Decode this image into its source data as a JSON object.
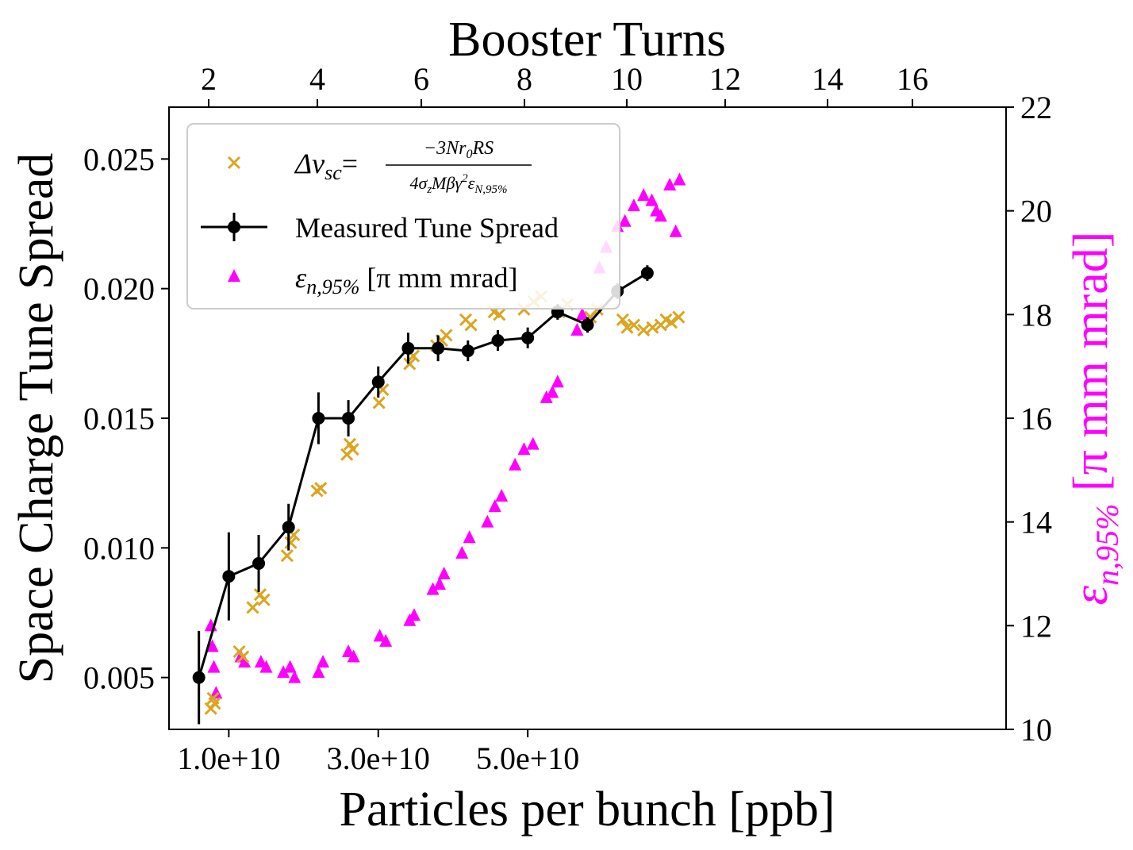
{
  "chart_data": {
    "type": "scatter",
    "title": "Booster Turns",
    "xlabel": "Particles per bunch [ppb]",
    "ylabel": "Space Charge Tune Spread",
    "y2label": "ε",
    "y2label_sub": "n,95%",
    "y2label_unit": "[π mm mrad]",
    "xlim": [
      2000000000.0,
      114000000000.0
    ],
    "ylim": [
      0.003,
      0.027
    ],
    "y2lim": [
      10,
      22
    ],
    "x_ticks": [
      10000000000.0,
      30000000000.0,
      50000000000.0
    ],
    "x_tick_labels": [
      "1.0e+10",
      "3.0e+10",
      "5.0e+10"
    ],
    "y_ticks": [
      0.005,
      0.01,
      0.015,
      0.02,
      0.025
    ],
    "y_tick_labels": [
      "0.005",
      "0.010",
      "0.015",
      "0.020",
      "0.025"
    ],
    "y2_ticks": [
      10,
      12,
      14,
      16,
      18,
      20,
      22
    ],
    "y2_tick_labels": [
      "10",
      "12",
      "14",
      "16",
      "18",
      "20",
      "22"
    ],
    "top_ticks_x": [
      8800000000.0,
      22000000000.0,
      39000000000.0,
      58000000000.0,
      79000000000.0,
      100000000000.0,
      124000000000.0,
      146000000000.0
    ],
    "top_tick_labels": [
      "2",
      "4",
      "6",
      "8",
      "10",
      "12",
      "14",
      "16"
    ],
    "colors": {
      "measured": "#000000",
      "theory": "#DAA520",
      "emittance": "#FF00FF"
    },
    "legend": {
      "placement": "upper-left",
      "theory_label": "Δν",
      "theory_sub": "sc",
      "theory_numerator": "−3Nr",
      "theory_numerator_sub": "0",
      "theory_numerator_tail": "RS",
      "theory_denominator": "4σ",
      "theory_denominator_sub_z": "z",
      "theory_denominator_mid": "Mβγ",
      "theory_denominator_sup": "2",
      "theory_denominator_eps": "ε",
      "theory_denominator_eps_sub": "N,95%",
      "measured_label": "Measured Tune Spread",
      "emit_label_sym": "ε",
      "emit_label_sub": "n,95%",
      "emit_label_unit": "[π mm mrad]"
    },
    "series": [
      {
        "name": "Measured Tune Spread",
        "marker": "circle-errorbar",
        "x": [
          6000000000.0,
          10000000000.0,
          14000000000.0,
          18000000000.0,
          22000000000.0,
          26000000000.0,
          30000000000.0,
          34000000000.0,
          38000000000.0,
          42000000000.0,
          46000000000.0,
          50000000000.0,
          54000000000.0,
          58000000000.0,
          62000000000.0,
          66000000000.0
        ],
        "y": [
          0.005,
          0.0089,
          0.0094,
          0.0108,
          0.015,
          0.015,
          0.0164,
          0.0177,
          0.0177,
          0.0176,
          0.018,
          0.0181,
          0.0191,
          0.0186,
          0.0199,
          0.0206
        ],
        "yerr": [
          0.0018,
          0.0017,
          0.0011,
          0.0009,
          0.001,
          0.0007,
          0.0006,
          0.0006,
          0.0005,
          0.0004,
          0.0004,
          0.0004,
          0.0003,
          0.0003,
          0.0003,
          0.0003
        ]
      },
      {
        "name": "Δν_sc",
        "marker": "x",
        "x": [
          7600000000.0,
          7900000000.0,
          8100000000.0,
          11400000000.0,
          11900000000.0,
          13200000000.0,
          14200000000.0,
          14700000000.0,
          17800000000.0,
          18300000000.0,
          18700000000.0,
          21800000000.0,
          22300000000.0,
          25800000000.0,
          26200000000.0,
          26600000000.0,
          30100000000.0,
          30600000000.0,
          34200000000.0,
          34700000000.0,
          37800000000.0,
          38500000000.0,
          39100000000.0,
          41700000000.0,
          42400000000.0,
          45500000000.0,
          46200000000.0,
          49500000000.0,
          50800000000.0,
          51800000000.0,
          54200000000.0,
          55300000000.0,
          58400000000.0,
          59300000000.0,
          62700000000.0,
          63300000000.0,
          64200000000.0,
          65500000000.0,
          66700000000.0,
          67800000000.0,
          68500000000.0,
          69200000000.0,
          70200000000.0
        ],
        "y": [
          0.0038,
          0.0042,
          0.004,
          0.006,
          0.0058,
          0.0077,
          0.0082,
          0.008,
          0.0097,
          0.0102,
          0.0105,
          0.0122,
          0.0123,
          0.0136,
          0.014,
          0.0138,
          0.0156,
          0.0161,
          0.0171,
          0.0174,
          0.0178,
          0.018,
          0.0182,
          0.0188,
          0.0186,
          0.0191,
          0.019,
          0.0192,
          0.0195,
          0.0197,
          0.0191,
          0.0194,
          0.0189,
          0.0192,
          0.0188,
          0.0185,
          0.0186,
          0.0184,
          0.0185,
          0.0186,
          0.0188,
          0.0187,
          0.0189
        ]
      },
      {
        "name": "ε_n,95% [π mm mrad]",
        "marker": "triangle",
        "axis": "right",
        "x": [
          7600000000.0,
          7800000000.0,
          8000000000.0,
          8300000000.0,
          11600000000.0,
          12100000000.0,
          14300000000.0,
          15000000000.0,
          17300000000.0,
          18200000000.0,
          18800000000.0,
          22000000000.0,
          22600000000.0,
          26000000000.0,
          26700000000.0,
          30200000000.0,
          31000000000.0,
          34200000000.0,
          34800000000.0,
          37300000000.0,
          38200000000.0,
          38800000000.0,
          41200000000.0,
          42200000000.0,
          44600000000.0,
          45600000000.0,
          46500000000.0,
          48300000000.0,
          49500000000.0,
          50700000000.0,
          52500000000.0,
          53300000000.0,
          54000000000.0,
          56600000000.0,
          57300000000.0,
          59600000000.0,
          60500000000.0,
          62000000000.0,
          63000000000.0,
          64200000000.0,
          65500000000.0,
          66600000000.0,
          67800000000.0,
          69000000000.0,
          70300000000.0,
          69800000000.0,
          67200000000.0
        ],
        "y": [
          12.0,
          11.6,
          11.2,
          10.7,
          11.4,
          11.3,
          11.3,
          11.2,
          11.1,
          11.2,
          11.0,
          11.1,
          11.3,
          11.5,
          11.4,
          11.8,
          11.7,
          12.1,
          12.2,
          12.7,
          12.8,
          13.0,
          13.4,
          13.7,
          14.0,
          14.3,
          14.5,
          15.1,
          15.4,
          15.5,
          16.4,
          16.5,
          16.7,
          17.7,
          18.0,
          18.9,
          19.3,
          19.7,
          19.8,
          20.1,
          20.3,
          20.2,
          19.9,
          20.5,
          20.6,
          19.6,
          20.0
        ]
      }
    ]
  }
}
